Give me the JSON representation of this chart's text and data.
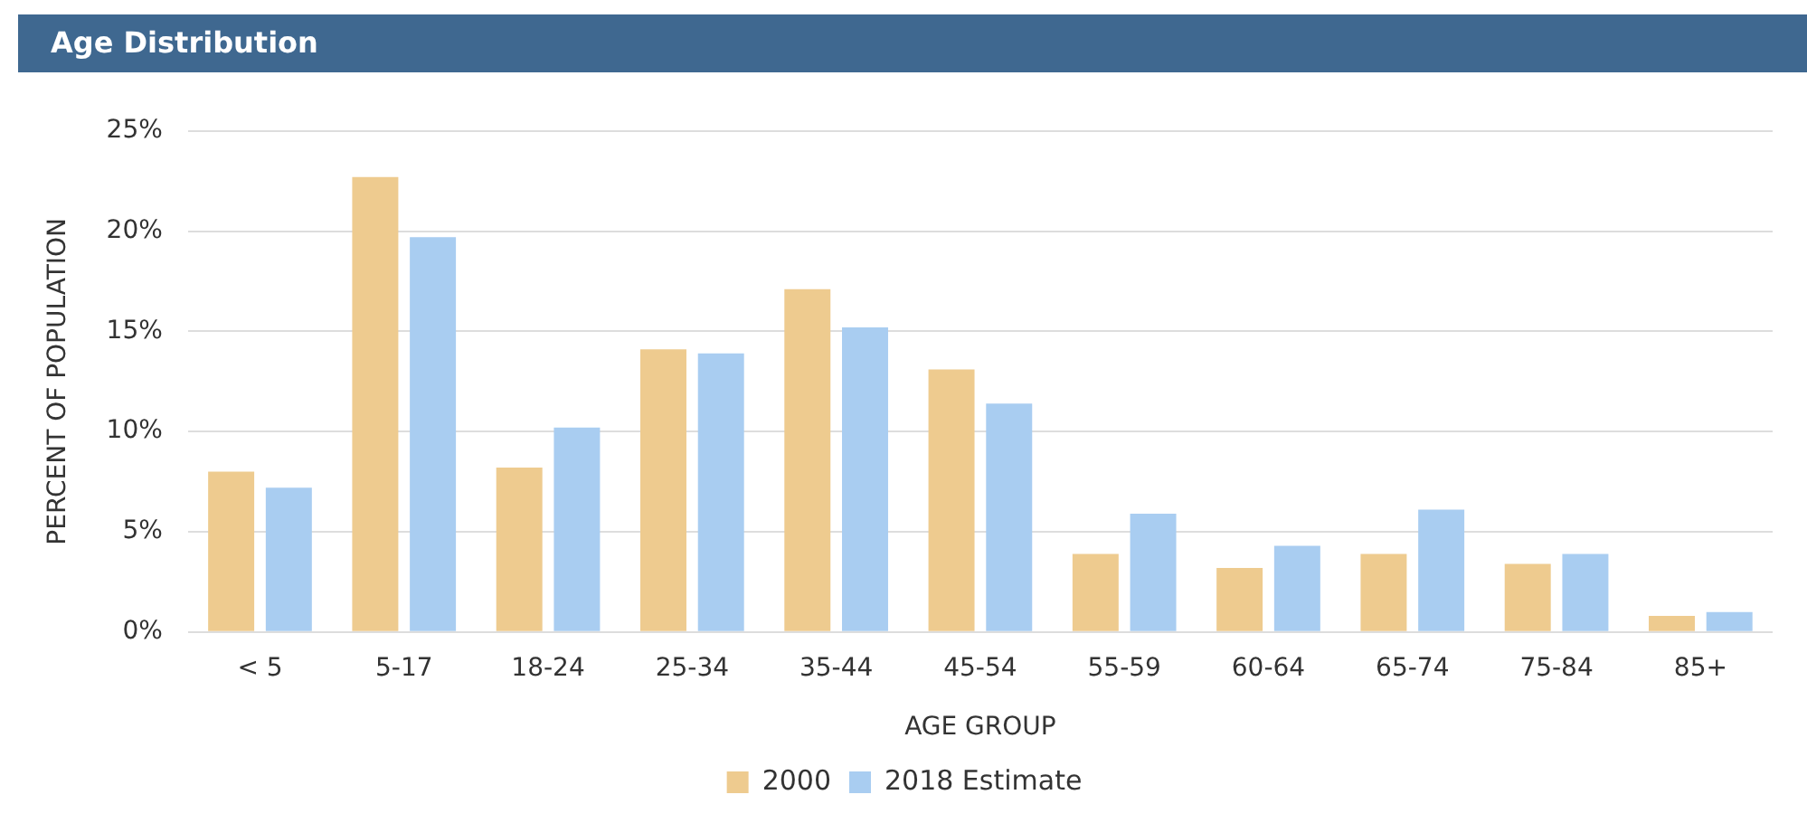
{
  "chart_data": {
    "type": "bar",
    "title": "Age Distribution",
    "xlabel": "AGE GROUP",
    "ylabel": "PERCENT OF POPULATION",
    "categories": [
      "< 5",
      "5-17",
      "18-24",
      "25-34",
      "35-44",
      "45-54",
      "55-59",
      "60-64",
      "65-74",
      "75-84",
      "85+"
    ],
    "series": [
      {
        "name": "2000",
        "color": "#eecb8f",
        "values": [
          8.0,
          22.7,
          8.2,
          14.1,
          17.1,
          13.1,
          3.9,
          3.2,
          3.9,
          3.4,
          0.8
        ]
      },
      {
        "name": "2018 Estimate",
        "color": "#a9cdf1",
        "values": [
          7.2,
          19.7,
          10.2,
          13.9,
          15.2,
          11.4,
          5.9,
          4.3,
          6.1,
          3.9,
          1.0
        ]
      }
    ],
    "ylim": [
      0,
      25
    ],
    "yticks": [
      {
        "value": 0,
        "label": "0%"
      },
      {
        "value": 5,
        "label": "5%"
      },
      {
        "value": 10,
        "label": "10%"
      },
      {
        "value": 15,
        "label": "15%"
      },
      {
        "value": 20,
        "label": "20%"
      },
      {
        "value": 25,
        "label": "25%"
      }
    ],
    "grid": "y",
    "legend": "bottom"
  }
}
